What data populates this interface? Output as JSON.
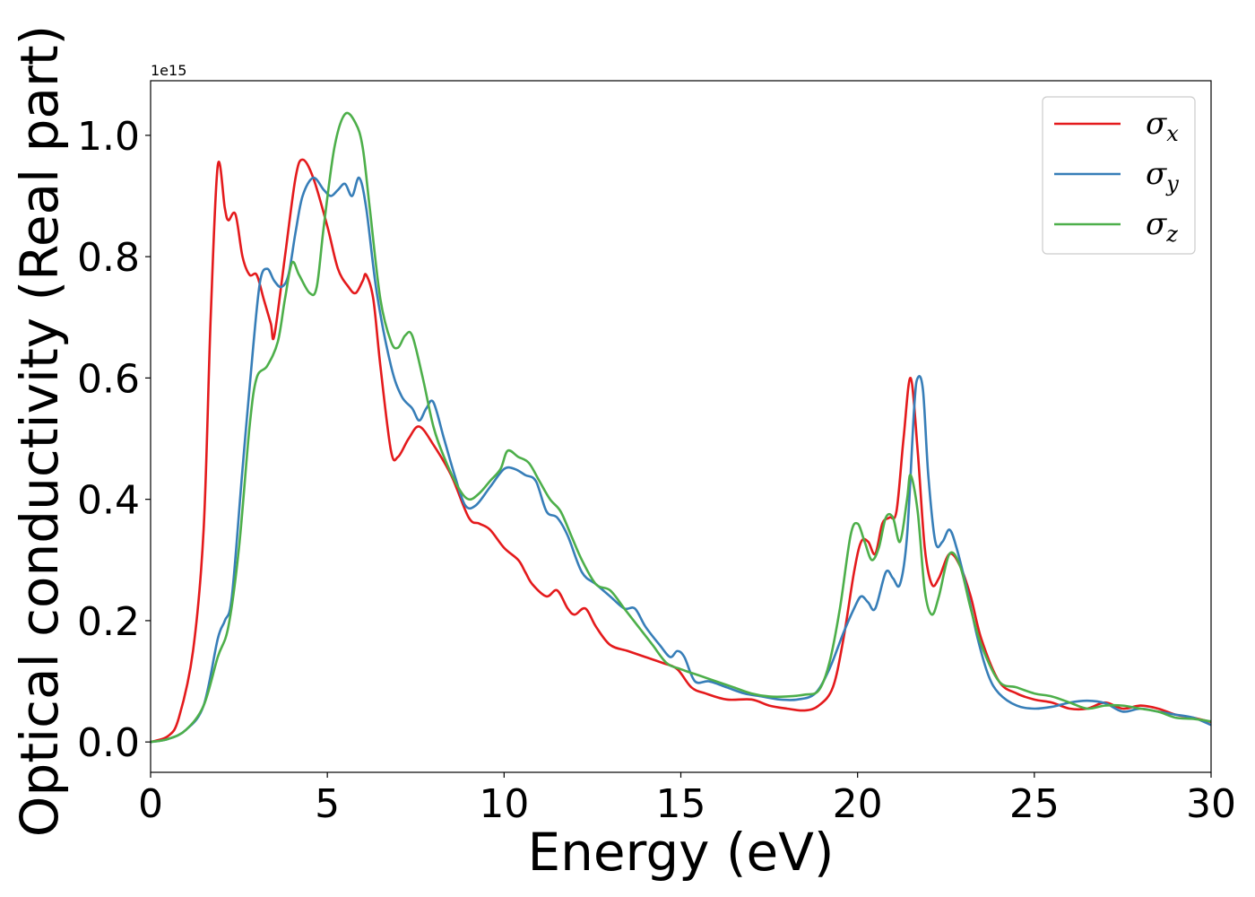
{
  "chart_data": {
    "type": "line",
    "xlabel": "Energy (eV)",
    "ylabel": "Optical conductivity (Real part)",
    "offset_label": "1e15",
    "xlim": [
      0,
      30
    ],
    "ylim": [
      -0.05,
      1.09
    ],
    "xticks": [
      "0",
      "5",
      "10",
      "15",
      "20",
      "25",
      "30"
    ],
    "yticks": [
      "0.0",
      "0.2",
      "0.4",
      "0.6",
      "0.8",
      "1.0"
    ],
    "grid": false,
    "legend_position": "top-right",
    "series": [
      {
        "name": "σx",
        "symbol": "σ",
        "subscript": "x",
        "color": "#e41a1c",
        "points": [
          [
            0,
            0
          ],
          [
            0.5,
            0.01
          ],
          [
            0.8,
            0.04
          ],
          [
            1.2,
            0.15
          ],
          [
            1.5,
            0.35
          ],
          [
            1.7,
            0.7
          ],
          [
            1.9,
            0.95
          ],
          [
            2.1,
            0.88
          ],
          [
            2.2,
            0.86
          ],
          [
            2.4,
            0.87
          ],
          [
            2.6,
            0.8
          ],
          [
            2.8,
            0.77
          ],
          [
            3.0,
            0.77
          ],
          [
            3.2,
            0.73
          ],
          [
            3.4,
            0.69
          ],
          [
            3.5,
            0.67
          ],
          [
            3.8,
            0.8
          ],
          [
            4.1,
            0.93
          ],
          [
            4.3,
            0.96
          ],
          [
            4.6,
            0.93
          ],
          [
            5.0,
            0.85
          ],
          [
            5.3,
            0.78
          ],
          [
            5.6,
            0.75
          ],
          [
            5.8,
            0.74
          ],
          [
            6.0,
            0.76
          ],
          [
            6.1,
            0.77
          ],
          [
            6.3,
            0.73
          ],
          [
            6.5,
            0.62
          ],
          [
            6.8,
            0.48
          ],
          [
            7.0,
            0.47
          ],
          [
            7.3,
            0.5
          ],
          [
            7.6,
            0.52
          ],
          [
            8.0,
            0.49
          ],
          [
            8.5,
            0.44
          ],
          [
            9.0,
            0.37
          ],
          [
            9.3,
            0.36
          ],
          [
            9.6,
            0.35
          ],
          [
            10.0,
            0.32
          ],
          [
            10.4,
            0.3
          ],
          [
            10.6,
            0.28
          ],
          [
            10.8,
            0.26
          ],
          [
            11.2,
            0.24
          ],
          [
            11.5,
            0.25
          ],
          [
            11.8,
            0.22
          ],
          [
            12.0,
            0.21
          ],
          [
            12.3,
            0.22
          ],
          [
            12.6,
            0.19
          ],
          [
            13.0,
            0.16
          ],
          [
            13.5,
            0.15
          ],
          [
            14.0,
            0.14
          ],
          [
            14.5,
            0.13
          ],
          [
            14.9,
            0.12
          ],
          [
            15.3,
            0.09
          ],
          [
            15.7,
            0.08
          ],
          [
            16.3,
            0.07
          ],
          [
            17.0,
            0.07
          ],
          [
            17.5,
            0.06
          ],
          [
            18.0,
            0.055
          ],
          [
            18.5,
            0.052
          ],
          [
            18.9,
            0.06
          ],
          [
            19.3,
            0.09
          ],
          [
            19.6,
            0.17
          ],
          [
            19.9,
            0.28
          ],
          [
            20.1,
            0.33
          ],
          [
            20.3,
            0.33
          ],
          [
            20.5,
            0.31
          ],
          [
            20.7,
            0.36
          ],
          [
            20.9,
            0.37
          ],
          [
            21.1,
            0.38
          ],
          [
            21.3,
            0.5
          ],
          [
            21.5,
            0.6
          ],
          [
            21.7,
            0.48
          ],
          [
            21.9,
            0.32
          ],
          [
            22.1,
            0.26
          ],
          [
            22.3,
            0.27
          ],
          [
            22.6,
            0.31
          ],
          [
            22.9,
            0.29
          ],
          [
            23.2,
            0.24
          ],
          [
            23.5,
            0.17
          ],
          [
            24.0,
            0.1
          ],
          [
            24.5,
            0.08
          ],
          [
            25.0,
            0.07
          ],
          [
            25.5,
            0.065
          ],
          [
            26.0,
            0.055
          ],
          [
            26.5,
            0.055
          ],
          [
            27.0,
            0.065
          ],
          [
            27.5,
            0.055
          ],
          [
            28.0,
            0.06
          ],
          [
            28.5,
            0.055
          ],
          [
            29.0,
            0.045
          ],
          [
            29.5,
            0.04
          ],
          [
            30.0,
            0.033
          ]
        ]
      },
      {
        "name": "σy",
        "symbol": "σ",
        "subscript": "y",
        "color": "#377eb8",
        "points": [
          [
            0,
            0
          ],
          [
            0.5,
            0.005
          ],
          [
            1.0,
            0.02
          ],
          [
            1.5,
            0.06
          ],
          [
            1.9,
            0.17
          ],
          [
            2.1,
            0.2
          ],
          [
            2.3,
            0.24
          ],
          [
            2.6,
            0.45
          ],
          [
            2.9,
            0.65
          ],
          [
            3.1,
            0.76
          ],
          [
            3.3,
            0.78
          ],
          [
            3.5,
            0.76
          ],
          [
            3.7,
            0.75
          ],
          [
            3.9,
            0.77
          ],
          [
            4.1,
            0.84
          ],
          [
            4.3,
            0.9
          ],
          [
            4.6,
            0.93
          ],
          [
            4.9,
            0.91
          ],
          [
            5.1,
            0.9
          ],
          [
            5.3,
            0.91
          ],
          [
            5.5,
            0.92
          ],
          [
            5.7,
            0.9
          ],
          [
            5.9,
            0.93
          ],
          [
            6.1,
            0.88
          ],
          [
            6.4,
            0.74
          ],
          [
            6.8,
            0.62
          ],
          [
            7.1,
            0.57
          ],
          [
            7.4,
            0.55
          ],
          [
            7.6,
            0.53
          ],
          [
            7.8,
            0.55
          ],
          [
            8.0,
            0.56
          ],
          [
            8.3,
            0.5
          ],
          [
            8.6,
            0.44
          ],
          [
            8.9,
            0.39
          ],
          [
            9.2,
            0.39
          ],
          [
            9.6,
            0.42
          ],
          [
            10.0,
            0.45
          ],
          [
            10.3,
            0.45
          ],
          [
            10.6,
            0.44
          ],
          [
            10.9,
            0.43
          ],
          [
            11.2,
            0.38
          ],
          [
            11.5,
            0.37
          ],
          [
            11.8,
            0.34
          ],
          [
            12.2,
            0.28
          ],
          [
            12.6,
            0.26
          ],
          [
            13.0,
            0.24
          ],
          [
            13.4,
            0.22
          ],
          [
            13.7,
            0.22
          ],
          [
            14.0,
            0.19
          ],
          [
            14.4,
            0.16
          ],
          [
            14.7,
            0.14
          ],
          [
            14.9,
            0.15
          ],
          [
            15.1,
            0.14
          ],
          [
            15.4,
            0.1
          ],
          [
            15.8,
            0.1
          ],
          [
            16.3,
            0.09
          ],
          [
            16.8,
            0.08
          ],
          [
            17.3,
            0.075
          ],
          [
            17.8,
            0.07
          ],
          [
            18.3,
            0.07
          ],
          [
            18.8,
            0.08
          ],
          [
            19.2,
            0.12
          ],
          [
            19.6,
            0.18
          ],
          [
            19.9,
            0.22
          ],
          [
            20.1,
            0.24
          ],
          [
            20.3,
            0.23
          ],
          [
            20.5,
            0.22
          ],
          [
            20.8,
            0.28
          ],
          [
            21.0,
            0.27
          ],
          [
            21.2,
            0.26
          ],
          [
            21.4,
            0.34
          ],
          [
            21.6,
            0.55
          ],
          [
            21.7,
            0.6
          ],
          [
            21.85,
            0.58
          ],
          [
            22.0,
            0.44
          ],
          [
            22.2,
            0.33
          ],
          [
            22.4,
            0.33
          ],
          [
            22.6,
            0.35
          ],
          [
            22.8,
            0.32
          ],
          [
            23.1,
            0.25
          ],
          [
            23.4,
            0.17
          ],
          [
            23.7,
            0.11
          ],
          [
            24.0,
            0.08
          ],
          [
            24.5,
            0.06
          ],
          [
            25.0,
            0.055
          ],
          [
            25.5,
            0.058
          ],
          [
            26.0,
            0.065
          ],
          [
            26.5,
            0.068
          ],
          [
            27.0,
            0.064
          ],
          [
            27.5,
            0.05
          ],
          [
            28.0,
            0.055
          ],
          [
            28.5,
            0.05
          ],
          [
            29.0,
            0.045
          ],
          [
            29.5,
            0.04
          ],
          [
            30.0,
            0.028
          ]
        ]
      },
      {
        "name": "σz",
        "symbol": "σ",
        "subscript": "z",
        "color": "#4daf4a",
        "points": [
          [
            0,
            0
          ],
          [
            0.5,
            0.005
          ],
          [
            1.0,
            0.02
          ],
          [
            1.5,
            0.06
          ],
          [
            1.9,
            0.14
          ],
          [
            2.2,
            0.19
          ],
          [
            2.5,
            0.32
          ],
          [
            2.8,
            0.52
          ],
          [
            3.0,
            0.6
          ],
          [
            3.3,
            0.62
          ],
          [
            3.6,
            0.66
          ],
          [
            3.8,
            0.73
          ],
          [
            4.0,
            0.79
          ],
          [
            4.2,
            0.77
          ],
          [
            4.5,
            0.74
          ],
          [
            4.7,
            0.75
          ],
          [
            4.9,
            0.85
          ],
          [
            5.2,
            0.98
          ],
          [
            5.5,
            1.035
          ],
          [
            5.8,
            1.02
          ],
          [
            6.0,
            0.98
          ],
          [
            6.2,
            0.88
          ],
          [
            6.5,
            0.73
          ],
          [
            6.8,
            0.66
          ],
          [
            7.0,
            0.65
          ],
          [
            7.2,
            0.67
          ],
          [
            7.4,
            0.67
          ],
          [
            7.7,
            0.6
          ],
          [
            8.0,
            0.52
          ],
          [
            8.3,
            0.47
          ],
          [
            8.7,
            0.42
          ],
          [
            9.0,
            0.4
          ],
          [
            9.3,
            0.41
          ],
          [
            9.6,
            0.43
          ],
          [
            9.9,
            0.45
          ],
          [
            10.1,
            0.48
          ],
          [
            10.4,
            0.47
          ],
          [
            10.7,
            0.46
          ],
          [
            11.0,
            0.43
          ],
          [
            11.3,
            0.4
          ],
          [
            11.6,
            0.38
          ],
          [
            11.9,
            0.34
          ],
          [
            12.2,
            0.3
          ],
          [
            12.6,
            0.26
          ],
          [
            13.0,
            0.25
          ],
          [
            13.4,
            0.22
          ],
          [
            13.8,
            0.19
          ],
          [
            14.2,
            0.16
          ],
          [
            14.6,
            0.13
          ],
          [
            15.0,
            0.12
          ],
          [
            15.5,
            0.11
          ],
          [
            16.0,
            0.1
          ],
          [
            16.5,
            0.09
          ],
          [
            17.0,
            0.08
          ],
          [
            17.5,
            0.075
          ],
          [
            18.0,
            0.075
          ],
          [
            18.5,
            0.078
          ],
          [
            18.9,
            0.085
          ],
          [
            19.2,
            0.13
          ],
          [
            19.5,
            0.22
          ],
          [
            19.8,
            0.34
          ],
          [
            20.0,
            0.36
          ],
          [
            20.2,
            0.33
          ],
          [
            20.4,
            0.3
          ],
          [
            20.6,
            0.32
          ],
          [
            20.8,
            0.37
          ],
          [
            21.0,
            0.37
          ],
          [
            21.2,
            0.33
          ],
          [
            21.4,
            0.4
          ],
          [
            21.5,
            0.44
          ],
          [
            21.7,
            0.38
          ],
          [
            21.9,
            0.25
          ],
          [
            22.1,
            0.21
          ],
          [
            22.3,
            0.24
          ],
          [
            22.6,
            0.31
          ],
          [
            22.9,
            0.29
          ],
          [
            23.2,
            0.22
          ],
          [
            23.5,
            0.16
          ],
          [
            24.0,
            0.1
          ],
          [
            24.5,
            0.09
          ],
          [
            25.0,
            0.08
          ],
          [
            25.5,
            0.075
          ],
          [
            26.0,
            0.065
          ],
          [
            26.5,
            0.055
          ],
          [
            27.0,
            0.06
          ],
          [
            27.5,
            0.06
          ],
          [
            28.0,
            0.055
          ],
          [
            28.5,
            0.05
          ],
          [
            29.0,
            0.04
          ],
          [
            29.5,
            0.038
          ],
          [
            30.0,
            0.034
          ]
        ]
      }
    ]
  }
}
